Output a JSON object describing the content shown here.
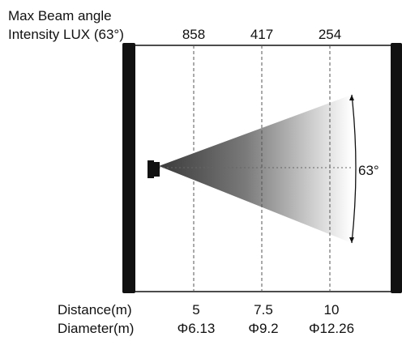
{
  "header": {
    "line1": "Max Beam angle",
    "line2": "Intensity LUX (63°)"
  },
  "lux_values": [
    "858",
    "417",
    "254"
  ],
  "distance_label": "Distance(m)",
  "diameter_label": "Diameter(m)",
  "distances": [
    "5",
    "7.5",
    "10"
  ],
  "diameters": [
    "Φ6.13",
    "Φ9.2",
    "Φ12.26"
  ],
  "beam_angle_label": "63°",
  "colors": {
    "frame": "#111111",
    "beam_dark": "#3a3a3a",
    "beam_light": "#ffffff",
    "guide": "#555555"
  }
}
